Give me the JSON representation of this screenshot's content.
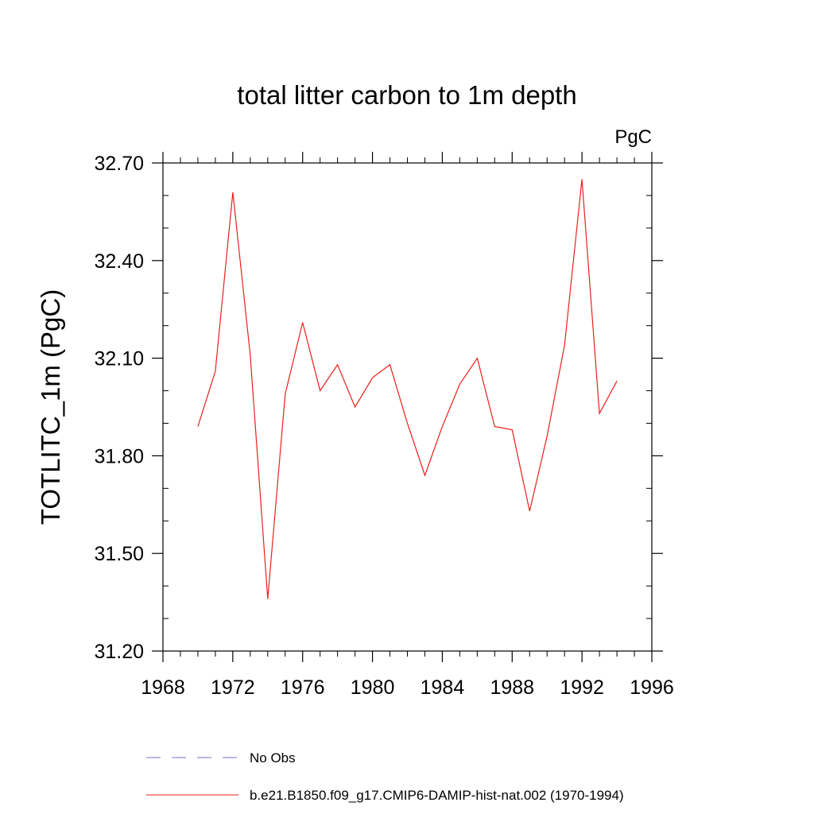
{
  "chart_data": {
    "type": "line",
    "title": "total litter carbon to 1m depth",
    "units_label": "PgC",
    "xlabel": "",
    "ylabel": "TOTLITC_1m  (PgC)",
    "xlim": [
      1968,
      1996
    ],
    "ylim": [
      31.2,
      32.7
    ],
    "x_ticks": [
      1968,
      1972,
      1976,
      1980,
      1984,
      1988,
      1992,
      1996
    ],
    "x_tick_labels": [
      "1968",
      "1972",
      "1976",
      "1980",
      "1984",
      "1988",
      "1992",
      "1996"
    ],
    "y_ticks": [
      31.2,
      31.5,
      31.8,
      32.1,
      32.4,
      32.7
    ],
    "y_tick_labels": [
      "31.20",
      "31.50",
      "31.80",
      "32.10",
      "32.40",
      "32.70"
    ],
    "grid": false,
    "legend_position": "bottom",
    "series": [
      {
        "name": "No Obs",
        "color": "#7a6fc4",
        "dash": "dashed",
        "x": [],
        "y": []
      },
      {
        "name": "b.e21.B1850.f09_g17.CMIP6-DAMIP-hist-nat.002 (1970-1994)",
        "color": "#e8201a",
        "dash": "solid",
        "x": [
          1970,
          1971,
          1972,
          1973,
          1974,
          1975,
          1976,
          1977,
          1978,
          1979,
          1980,
          1981,
          1982,
          1983,
          1984,
          1985,
          1986,
          1987,
          1988,
          1989,
          1990,
          1991,
          1992,
          1993,
          1994
        ],
        "y": [
          31.89,
          32.06,
          32.61,
          32.11,
          31.36,
          31.99,
          32.21,
          32.0,
          32.08,
          31.95,
          32.04,
          32.08,
          31.9,
          31.74,
          31.89,
          32.02,
          32.1,
          31.89,
          31.88,
          31.63,
          31.86,
          32.14,
          32.65,
          31.93,
          32.03
        ]
      }
    ]
  }
}
